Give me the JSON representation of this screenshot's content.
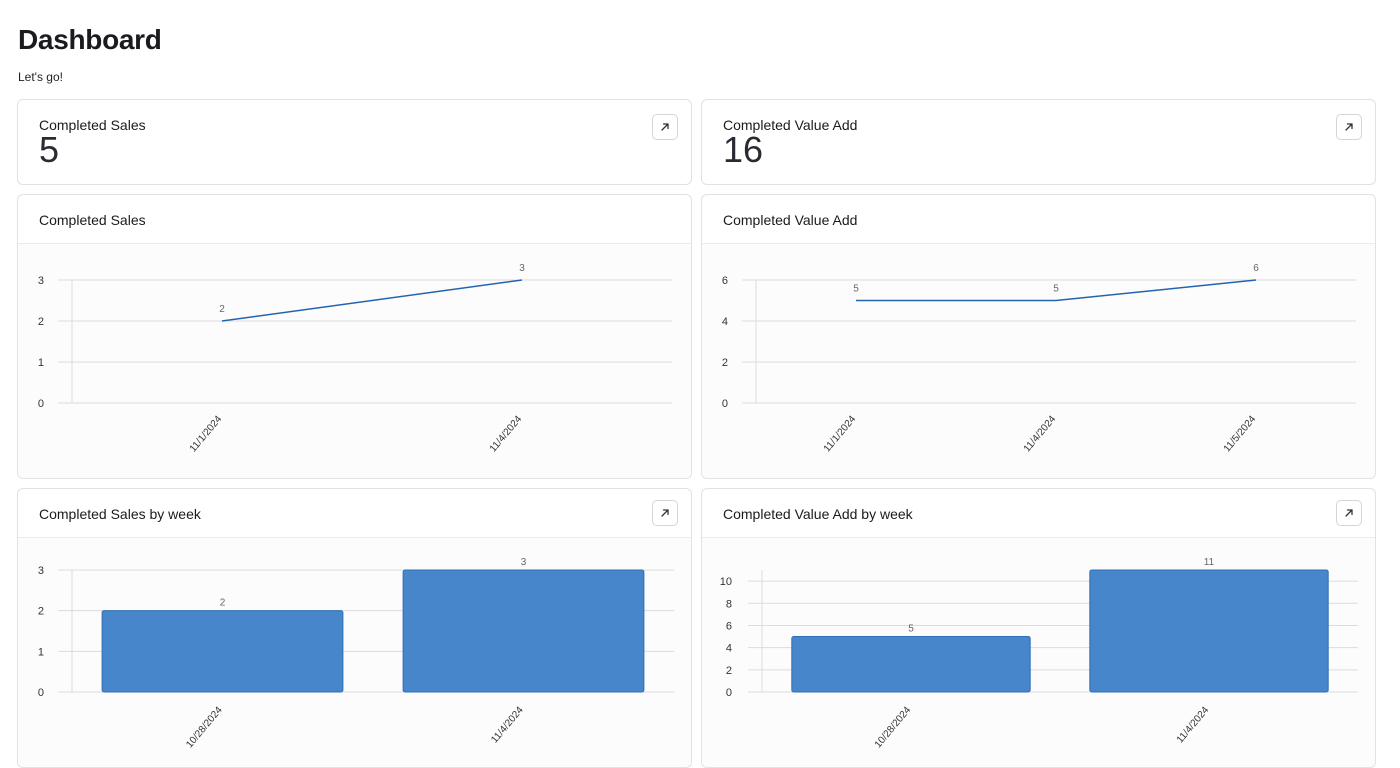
{
  "page": {
    "title": "Dashboard",
    "subtitle": "Let's go!"
  },
  "stats": [
    {
      "label": "Completed Sales",
      "value": "5"
    },
    {
      "label": "Completed Value Add",
      "value": "16"
    }
  ],
  "colors": {
    "line": "#2264b0",
    "bar_fill": "#4786cb",
    "bar_stroke": "#2f6fb5",
    "grid": "#dcdce0",
    "tick_text": "#333333",
    "label_text": "#666666"
  },
  "icons": {
    "open": "arrow-up-right-icon"
  },
  "charts": [
    {
      "title": "Completed Sales",
      "chart_data": {
        "type": "line",
        "categories": [
          "11/1/2024",
          "11/4/2024"
        ],
        "values": [
          2,
          3
        ],
        "data_labels": [
          "2",
          "3"
        ],
        "yticks": [
          "0",
          "1",
          "2",
          "3"
        ],
        "ylim": [
          0,
          3
        ],
        "grid": true
      }
    },
    {
      "title": "Completed Value Add",
      "chart_data": {
        "type": "line",
        "categories": [
          "11/1/2024",
          "11/4/2024",
          "11/5/2024"
        ],
        "values": [
          5,
          5,
          6
        ],
        "data_labels": [
          "5",
          "5",
          "6"
        ],
        "yticks": [
          "0",
          "2",
          "4",
          "6"
        ],
        "ylim": [
          0,
          6
        ],
        "grid": true
      }
    },
    {
      "title": "Completed Sales by week",
      "chart_data": {
        "type": "bar",
        "categories": [
          "10/28/2024",
          "11/4/2024"
        ],
        "values": [
          2,
          3
        ],
        "data_labels": [
          "2",
          "3"
        ],
        "yticks": [
          "0",
          "1",
          "2",
          "3"
        ],
        "ylim": [
          0,
          3
        ],
        "grid": true
      }
    },
    {
      "title": "Completed Value Add by week",
      "chart_data": {
        "type": "bar",
        "categories": [
          "10/28/2024",
          "11/4/2024"
        ],
        "values": [
          5,
          11
        ],
        "data_labels": [
          "5",
          "11"
        ],
        "yticks": [
          "0",
          "2",
          "4",
          "6",
          "8",
          "10"
        ],
        "ylim": [
          0,
          11
        ],
        "grid": true
      }
    }
  ]
}
